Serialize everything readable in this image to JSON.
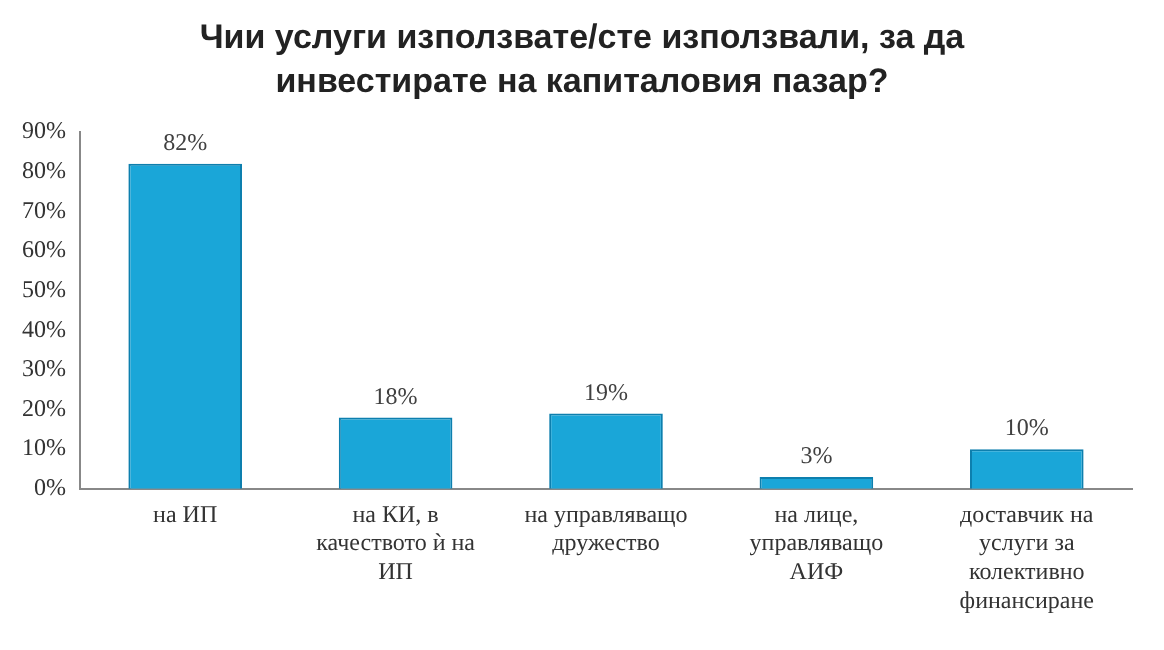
{
  "chart_data": {
    "type": "bar",
    "title": "Чии услуги използвате/сте използвали, за да инвестирате на капиталовия пазар?",
    "categories": [
      "на ИП",
      "на КИ, в качеството ѝ на ИП",
      "на управляващо дружество",
      "на лице, управляващо АИФ",
      "доставчик на услуги за колективно финансиране"
    ],
    "values": [
      82,
      18,
      19,
      3,
      10
    ],
    "value_labels": [
      "82%",
      "18%",
      "19%",
      "3%",
      "10%"
    ],
    "color": "#1aa6d8",
    "ylim": [
      0,
      90
    ],
    "yticks": [
      {
        "value": 0,
        "label": "0%"
      },
      {
        "value": 10,
        "label": "10%"
      },
      {
        "value": 20,
        "label": "20%"
      },
      {
        "value": 30,
        "label": "30%"
      },
      {
        "value": 40,
        "label": "40%"
      },
      {
        "value": 50,
        "label": "50%"
      },
      {
        "value": 60,
        "label": "60%"
      },
      {
        "value": 70,
        "label": "70%"
      },
      {
        "value": 80,
        "label": "80%"
      },
      {
        "value": 90,
        "label": "90%"
      }
    ],
    "grid": false,
    "legend": false
  }
}
